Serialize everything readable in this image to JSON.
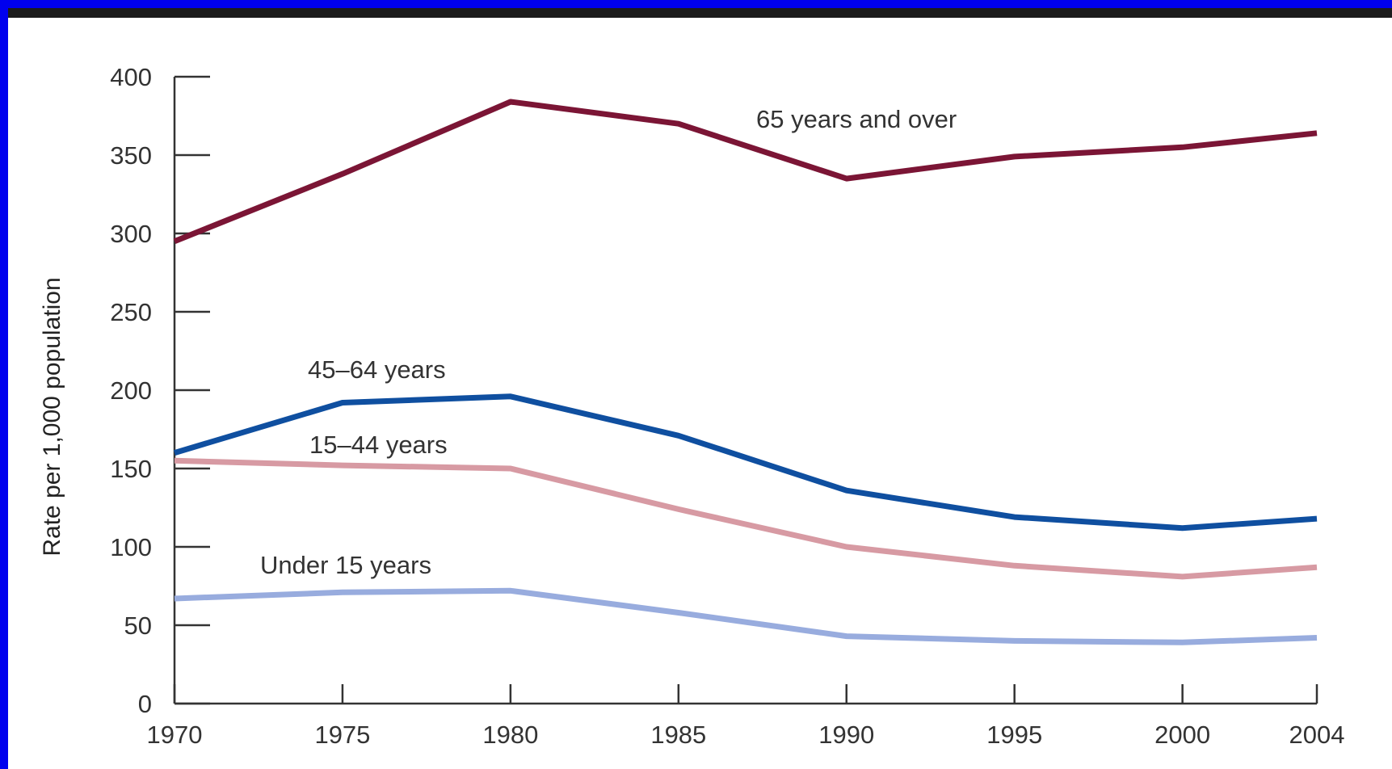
{
  "chart_data": {
    "type": "line",
    "title": "",
    "xlabel": "",
    "ylabel": "Rate per 1,000 population",
    "x": [
      1970,
      1975,
      1980,
      1985,
      1990,
      1995,
      2000,
      2004
    ],
    "x_tick_labels": [
      "1970",
      "1975",
      "1980",
      "1985",
      "1990",
      "1995",
      "2000",
      "2004"
    ],
    "ylim": [
      0,
      400
    ],
    "y_ticks": [
      0,
      50,
      100,
      150,
      200,
      250,
      300,
      350,
      400
    ],
    "y_tick_labels": [
      "0",
      "50",
      "100",
      "150",
      "200",
      "250",
      "300",
      "350",
      "400"
    ],
    "grid": false,
    "legend": "inline labels",
    "series": [
      {
        "name": "65 years and over",
        "color": "#7b1535",
        "values": [
          295,
          338,
          384,
          370,
          335,
          349,
          355,
          364
        ]
      },
      {
        "name": "45–64 years",
        "color": "#0f4fa0",
        "values": [
          160,
          192,
          196,
          171,
          136,
          119,
          112,
          118
        ]
      },
      {
        "name": "15–44 years",
        "color": "#d79aa3",
        "values": [
          155,
          152,
          150,
          124,
          100,
          88,
          81,
          87
        ]
      },
      {
        "name": "Under 15 years",
        "color": "#98acde",
        "values": [
          67,
          71,
          72,
          58,
          43,
          40,
          39,
          42
        ]
      }
    ]
  }
}
